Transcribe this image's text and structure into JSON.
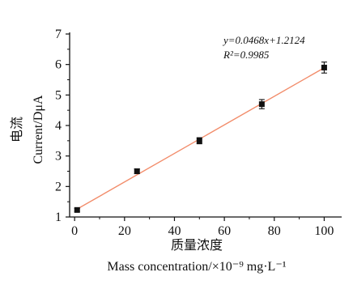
{
  "chart_data": {
    "type": "scatter",
    "x": [
      1,
      25,
      50,
      75,
      100
    ],
    "y": [
      1.23,
      2.5,
      3.5,
      4.7,
      5.9
    ],
    "errors": [
      0.05,
      0.08,
      0.1,
      0.15,
      0.18
    ],
    "fit": {
      "slope": 0.0468,
      "intercept": 1.2124,
      "r2": 0.9985
    },
    "equation_line1": "y=0.0468x+1.2124",
    "equation_line2": "R²=0.9985",
    "xlabel_cn": "质量浓度",
    "xlabel_en": "Mass concentration/×10⁻⁹ mg·L⁻¹",
    "ylabel_cn": "电流",
    "ylabel_en": "Current/DμA",
    "xlim": [
      -2,
      107
    ],
    "ylim": [
      1,
      7
    ],
    "xticks": [
      0,
      20,
      40,
      60,
      80,
      100
    ],
    "yticks": [
      1,
      2,
      3,
      4,
      5,
      6,
      7
    ],
    "grid": false,
    "colors": {
      "marker": "#111111",
      "fit_line": "#f28c6a",
      "axis": "#111111"
    }
  }
}
